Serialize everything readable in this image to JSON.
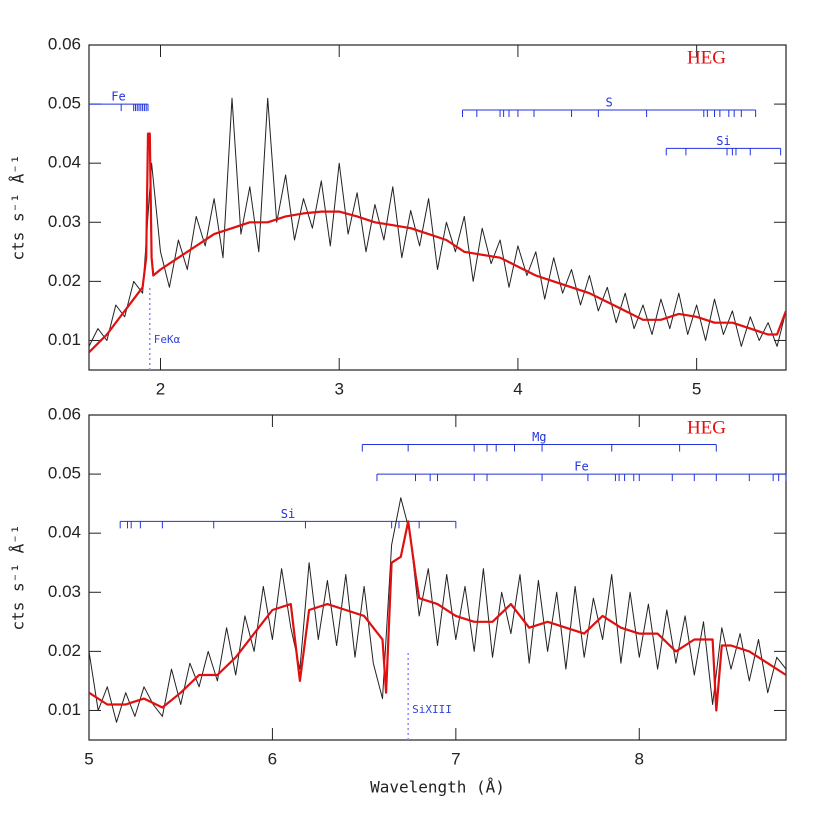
{
  "chart_data": [
    {
      "type": "line",
      "ylabel": "cts s⁻¹ Å⁻¹",
      "tag": "HEG",
      "xlim": [
        1.6,
        5.5
      ],
      "ylim": [
        0.005,
        0.06
      ],
      "xticks": [
        2,
        3,
        4,
        5
      ],
      "yticks": [
        0.01,
        0.02,
        0.03,
        0.04,
        0.05,
        0.06
      ],
      "series": [
        {
          "color": "#222222",
          "x": [
            1.6,
            1.65,
            1.7,
            1.75,
            1.8,
            1.85,
            1.9,
            1.95,
            2.0,
            2.05,
            2.1,
            2.15,
            2.2,
            2.25,
            2.3,
            2.35,
            2.4,
            2.45,
            2.5,
            2.55,
            2.6,
            2.65,
            2.7,
            2.75,
            2.8,
            2.85,
            2.9,
            2.95,
            3.0,
            3.05,
            3.1,
            3.15,
            3.2,
            3.25,
            3.3,
            3.35,
            3.4,
            3.45,
            3.5,
            3.55,
            3.6,
            3.65,
            3.7,
            3.75,
            3.8,
            3.85,
            3.9,
            3.95,
            4.0,
            4.05,
            4.1,
            4.15,
            4.2,
            4.25,
            4.3,
            4.35,
            4.4,
            4.45,
            4.5,
            4.55,
            4.6,
            4.65,
            4.7,
            4.75,
            4.8,
            4.85,
            4.9,
            4.95,
            5.0,
            5.05,
            5.1,
            5.15,
            5.2,
            5.25,
            5.3,
            5.35,
            5.4,
            5.45,
            5.5
          ],
          "values": [
            0.009,
            0.012,
            0.01,
            0.016,
            0.014,
            0.02,
            0.018,
            0.04,
            0.025,
            0.019,
            0.027,
            0.022,
            0.031,
            0.026,
            0.034,
            0.024,
            0.051,
            0.028,
            0.036,
            0.025,
            0.051,
            0.03,
            0.038,
            0.027,
            0.034,
            0.029,
            0.037,
            0.026,
            0.04,
            0.028,
            0.035,
            0.025,
            0.033,
            0.027,
            0.036,
            0.024,
            0.032,
            0.026,
            0.034,
            0.022,
            0.03,
            0.025,
            0.031,
            0.02,
            0.029,
            0.023,
            0.027,
            0.019,
            0.026,
            0.021,
            0.025,
            0.017,
            0.024,
            0.018,
            0.022,
            0.016,
            0.021,
            0.015,
            0.019,
            0.013,
            0.018,
            0.012,
            0.016,
            0.011,
            0.017,
            0.012,
            0.018,
            0.011,
            0.016,
            0.01,
            0.017,
            0.011,
            0.015,
            0.009,
            0.014,
            0.01,
            0.013,
            0.009,
            0.015
          ]
        },
        {
          "color": "#e01010",
          "x": [
            1.6,
            1.7,
            1.8,
            1.9,
            1.92,
            1.93,
            1.94,
            1.95,
            1.96,
            2.0,
            2.1,
            2.2,
            2.3,
            2.4,
            2.5,
            2.6,
            2.7,
            2.8,
            2.9,
            3.0,
            3.1,
            3.2,
            3.3,
            3.4,
            3.5,
            3.6,
            3.7,
            3.8,
            3.9,
            4.0,
            4.1,
            4.2,
            4.3,
            4.4,
            4.5,
            4.6,
            4.7,
            4.8,
            4.9,
            5.0,
            5.1,
            5.2,
            5.3,
            5.4,
            5.45,
            5.5
          ],
          "values": [
            0.008,
            0.011,
            0.015,
            0.019,
            0.024,
            0.045,
            0.045,
            0.024,
            0.021,
            0.022,
            0.024,
            0.026,
            0.028,
            0.029,
            0.03,
            0.03,
            0.031,
            0.0315,
            0.0318,
            0.0318,
            0.031,
            0.03,
            0.0295,
            0.029,
            0.028,
            0.027,
            0.025,
            0.0245,
            0.024,
            0.0225,
            0.021,
            0.02,
            0.019,
            0.018,
            0.0165,
            0.015,
            0.0135,
            0.0135,
            0.0145,
            0.014,
            0.013,
            0.013,
            0.012,
            0.011,
            0.011,
            0.015
          ]
        }
      ],
      "line_lists": [
        {
          "label": "Fe",
          "y": 0.05,
          "range": [
            1.6,
            1.93
          ],
          "lines": [
            1.78,
            1.85,
            1.86,
            1.87,
            1.88,
            1.89,
            1.9,
            1.91,
            1.92,
            1.93
          ]
        },
        {
          "label": "S",
          "y": 0.049,
          "range": [
            3.69,
            5.33
          ],
          "lines": [
            3.69,
            3.77,
            3.9,
            3.92,
            3.95,
            4.0,
            4.09,
            4.3,
            4.45,
            4.72,
            5.04,
            5.06,
            5.1,
            5.13,
            5.18,
            5.21,
            5.25,
            5.33
          ]
        },
        {
          "label": "Si",
          "y": 0.0425,
          "range": [
            4.83,
            5.47
          ],
          "lines": [
            4.83,
            4.94,
            5.17,
            5.2,
            5.22,
            5.3,
            5.47
          ]
        }
      ],
      "annotations": [
        {
          "text": "FeKα",
          "x": 1.94,
          "y": 0.019
        }
      ]
    },
    {
      "type": "line",
      "ylabel": "cts s⁻¹ Å⁻¹",
      "xlabel": "Wavelength (Å)",
      "tag": "HEG",
      "xlim": [
        5,
        8.8
      ],
      "ylim": [
        0.005,
        0.06
      ],
      "xticks": [
        5,
        6,
        7,
        8
      ],
      "yticks": [
        0.01,
        0.02,
        0.03,
        0.04,
        0.05,
        0.06
      ],
      "series": [
        {
          "color": "#222222",
          "x": [
            5.0,
            5.05,
            5.1,
            5.15,
            5.2,
            5.25,
            5.3,
            5.35,
            5.4,
            5.45,
            5.5,
            5.55,
            5.6,
            5.65,
            5.7,
            5.75,
            5.8,
            5.85,
            5.9,
            5.95,
            6.0,
            6.05,
            6.1,
            6.15,
            6.2,
            6.25,
            6.3,
            6.35,
            6.4,
            6.45,
            6.5,
            6.55,
            6.6,
            6.65,
            6.7,
            6.75,
            6.8,
            6.85,
            6.9,
            6.95,
            7.0,
            7.05,
            7.1,
            7.15,
            7.2,
            7.25,
            7.3,
            7.35,
            7.4,
            7.45,
            7.5,
            7.55,
            7.6,
            7.65,
            7.7,
            7.75,
            7.8,
            7.85,
            7.9,
            7.95,
            8.0,
            8.05,
            8.1,
            8.15,
            8.2,
            8.25,
            8.3,
            8.35,
            8.4,
            8.45,
            8.5,
            8.55,
            8.6,
            8.65,
            8.7,
            8.75,
            8.8
          ],
          "values": [
            0.02,
            0.01,
            0.014,
            0.008,
            0.013,
            0.009,
            0.014,
            0.011,
            0.009,
            0.017,
            0.011,
            0.018,
            0.014,
            0.02,
            0.015,
            0.024,
            0.016,
            0.026,
            0.02,
            0.031,
            0.022,
            0.034,
            0.024,
            0.017,
            0.035,
            0.022,
            0.032,
            0.021,
            0.033,
            0.019,
            0.031,
            0.018,
            0.012,
            0.038,
            0.046,
            0.04,
            0.026,
            0.034,
            0.021,
            0.033,
            0.022,
            0.031,
            0.02,
            0.034,
            0.019,
            0.03,
            0.023,
            0.033,
            0.018,
            0.032,
            0.02,
            0.03,
            0.017,
            0.031,
            0.019,
            0.029,
            0.022,
            0.033,
            0.018,
            0.03,
            0.019,
            0.028,
            0.017,
            0.027,
            0.018,
            0.026,
            0.016,
            0.025,
            0.011,
            0.024,
            0.017,
            0.023,
            0.015,
            0.022,
            0.013,
            0.019,
            0.017
          ]
        },
        {
          "color": "#e01010",
          "x": [
            5.0,
            5.1,
            5.2,
            5.3,
            5.4,
            5.5,
            5.6,
            5.7,
            5.8,
            5.9,
            6.0,
            6.1,
            6.15,
            6.2,
            6.3,
            6.4,
            6.5,
            6.6,
            6.62,
            6.65,
            6.7,
            6.74,
            6.78,
            6.8,
            6.9,
            7.0,
            7.1,
            7.2,
            7.3,
            7.4,
            7.5,
            7.6,
            7.7,
            7.8,
            7.9,
            8.0,
            8.1,
            8.2,
            8.3,
            8.4,
            8.42,
            8.45,
            8.5,
            8.6,
            8.7,
            8.8
          ],
          "values": [
            0.013,
            0.011,
            0.011,
            0.012,
            0.0105,
            0.013,
            0.016,
            0.016,
            0.019,
            0.023,
            0.027,
            0.028,
            0.015,
            0.027,
            0.028,
            0.027,
            0.026,
            0.022,
            0.013,
            0.035,
            0.036,
            0.042,
            0.033,
            0.029,
            0.028,
            0.026,
            0.025,
            0.025,
            0.028,
            0.024,
            0.025,
            0.024,
            0.023,
            0.026,
            0.024,
            0.023,
            0.023,
            0.02,
            0.022,
            0.022,
            0.01,
            0.021,
            0.021,
            0.02,
            0.018,
            0.016
          ]
        }
      ],
      "line_lists": [
        {
          "label": "Mg",
          "y": 0.055,
          "range": [
            6.49,
            8.42
          ],
          "lines": [
            6.49,
            6.74,
            7.1,
            7.17,
            7.22,
            7.32,
            7.47,
            7.85,
            8.22,
            8.42
          ]
        },
        {
          "label": "Fe",
          "y": 0.05,
          "range": [
            6.57,
            8.8
          ],
          "lines": [
            6.57,
            6.78,
            6.86,
            6.9,
            7.1,
            7.17,
            7.47,
            7.72,
            7.87,
            7.89,
            7.92,
            7.97,
            8.0,
            8.18,
            8.3,
            8.42,
            8.6,
            8.73,
            8.76,
            8.8
          ]
        },
        {
          "label": "Si",
          "y": 0.042,
          "range": [
            5.17,
            7.0
          ],
          "lines": [
            5.17,
            5.21,
            5.23,
            5.28,
            5.4,
            5.68,
            6.18,
            6.65,
            6.69,
            6.74,
            6.8,
            7.0
          ]
        }
      ],
      "annotations": [
        {
          "text": "SiXIII",
          "x": 6.74,
          "y": 0.02
        }
      ]
    }
  ]
}
